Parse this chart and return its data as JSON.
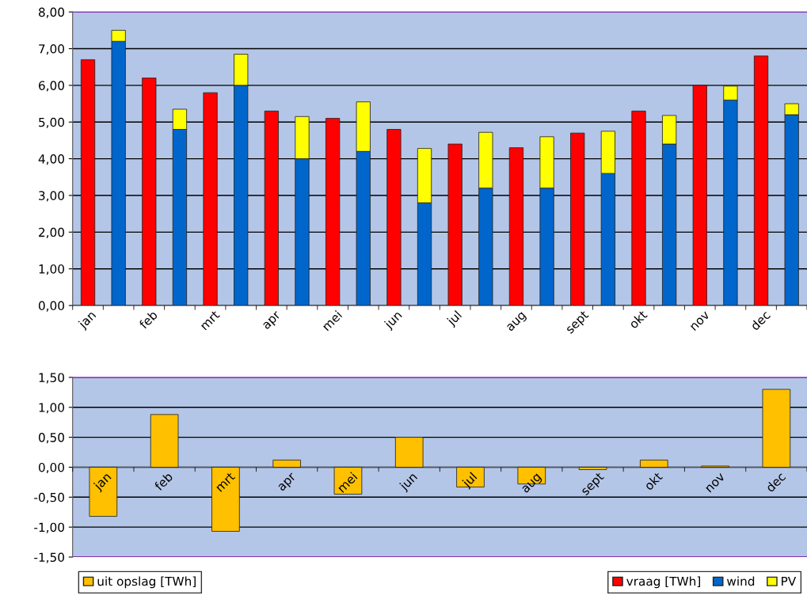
{
  "chart_data": [
    {
      "type": "bar",
      "stacked": true,
      "categories": [
        "jan",
        null,
        "feb",
        null,
        "mrt",
        null,
        "apr",
        null,
        "mei",
        null,
        "jun",
        null,
        "jul",
        null,
        "aug",
        null,
        "sept",
        null,
        "okt",
        null,
        "nov",
        null,
        "dec",
        null
      ],
      "series": [
        {
          "name": "vraag [TWh]",
          "color": "#ff0000",
          "values": [
            6.7,
            null,
            6.2,
            null,
            5.8,
            null,
            5.3,
            null,
            5.1,
            null,
            4.8,
            null,
            4.4,
            null,
            4.3,
            null,
            4.7,
            null,
            5.3,
            null,
            6.0,
            null,
            6.8,
            null
          ]
        },
        {
          "name": "wind",
          "color": "#0066cc",
          "values": [
            null,
            7.2,
            null,
            4.8,
            null,
            6.0,
            null,
            4.0,
            null,
            4.2,
            null,
            2.8,
            null,
            3.2,
            null,
            3.2,
            null,
            3.6,
            null,
            4.4,
            null,
            5.6,
            null,
            5.2
          ]
        },
        {
          "name": "PV",
          "color": "#ffff00",
          "values": [
            null,
            0.3,
            null,
            0.55,
            null,
            0.85,
            null,
            1.15,
            null,
            1.35,
            null,
            1.48,
            null,
            1.52,
            null,
            1.4,
            null,
            1.15,
            null,
            0.78,
            null,
            0.38,
            null,
            0.3
          ]
        }
      ],
      "ylim": [
        0,
        8
      ],
      "yticks": [
        {
          "value": 0,
          "label": "0,00"
        },
        {
          "value": 1,
          "label": "1,00"
        },
        {
          "value": 2,
          "label": "2,00"
        },
        {
          "value": 3,
          "label": "3,00"
        },
        {
          "value": 4,
          "label": "4,00"
        },
        {
          "value": 5,
          "label": "5,00"
        },
        {
          "value": 6,
          "label": "6,00"
        },
        {
          "value": 7,
          "label": "7,00"
        },
        {
          "value": 8,
          "label": "8,00"
        }
      ],
      "grid": "y",
      "legend": "bottom right"
    },
    {
      "type": "bar",
      "categories": [
        "jan",
        "feb",
        "mrt",
        "apr",
        "mei",
        "jun",
        "jul",
        "aug",
        "sept",
        "okt",
        "nov",
        "dec"
      ],
      "series": [
        {
          "name": "uit opslag [TWh]",
          "color": "#ffc000",
          "values": [
            -0.82,
            0.88,
            -1.07,
            0.12,
            -0.45,
            0.5,
            -0.33,
            -0.28,
            -0.04,
            0.12,
            0.02,
            1.3
          ]
        }
      ],
      "ylim": [
        -1.5,
        1.5
      ],
      "yticks": [
        {
          "value": -1.5,
          "label": "-1,50"
        },
        {
          "value": -1,
          "label": "-1,00"
        },
        {
          "value": -0.5,
          "label": "-0,50"
        },
        {
          "value": 0,
          "label": "0,00"
        },
        {
          "value": 0.5,
          "label": "0,50"
        },
        {
          "value": 1,
          "label": "1,00"
        },
        {
          "value": 1.5,
          "label": "1,50"
        }
      ],
      "grid": "y",
      "legend": "bottom left"
    }
  ]
}
